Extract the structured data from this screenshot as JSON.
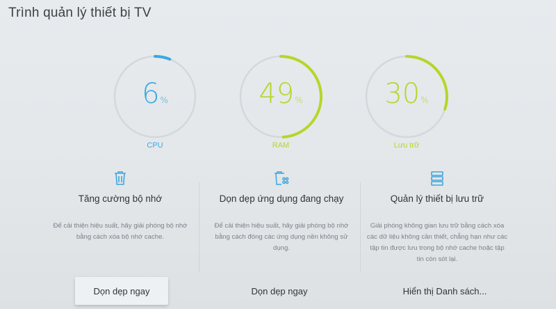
{
  "title": "Trình quản lý thiết bị TV",
  "gauges": [
    {
      "value": "6",
      "unit": "%",
      "label": "CPU",
      "percent": 6,
      "color": "#38a9e0"
    },
    {
      "value": "49",
      "unit": "%",
      "label": "RAM",
      "percent": 49,
      "color": "#b5d62a"
    },
    {
      "value": "30",
      "unit": "%",
      "label": "Lưu trữ",
      "percent": 30,
      "color": "#b5d62a"
    }
  ],
  "track_color": "#d3d8dc",
  "sections": [
    {
      "icon": "trash-icon",
      "title": "Tăng cường bộ nhớ",
      "description": "Để cải thiện hiệu suất, hãy giải phóng bộ nhớ bằng cách xóa bộ nhớ cache.",
      "button": "Dọn dẹp ngay"
    },
    {
      "icon": "trash-apps-icon",
      "title": "Dọn dẹp ứng dụng đang chạy",
      "description": "Để cải thiện hiệu suất, hãy giải phóng bộ nhớ bằng cách đóng các ứng dụng nền không sử dụng.",
      "button": "Dọn dẹp ngay"
    },
    {
      "icon": "storage-icon",
      "title": "Quản lý thiết bị lưu trữ",
      "description": "Giải phóng không gian lưu trữ bằng cách xóa các dữ liệu không cần thiết, chẳng hạn như các tập tin được lưu trong bộ nhớ cache hoặc tập tin còn sót lại.",
      "button": "Hiển thị Danh sách..."
    }
  ]
}
